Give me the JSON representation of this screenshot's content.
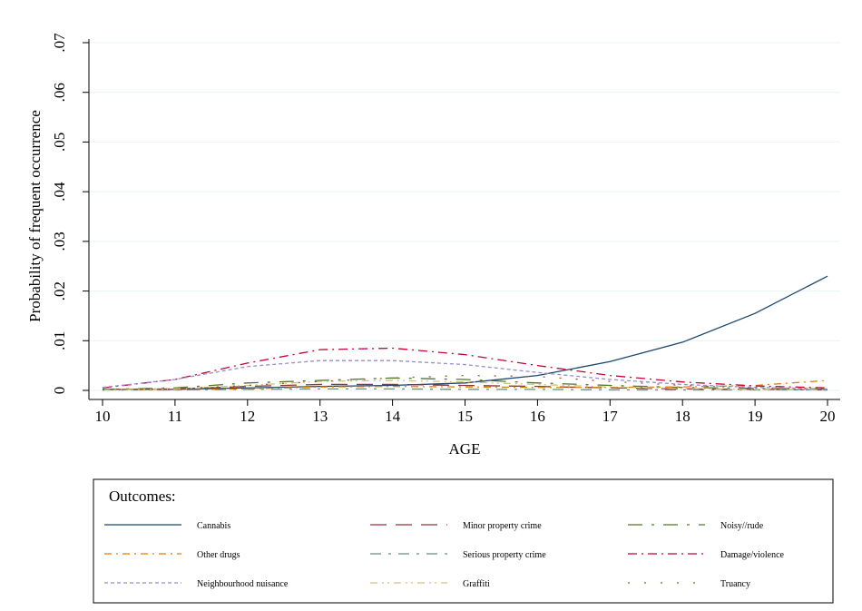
{
  "chart_data": {
    "type": "line",
    "y_label": "Probability of frequent occurrence",
    "x_label": "AGE",
    "legend_title": "Outcomes:",
    "x": [
      10,
      11,
      12,
      13,
      14,
      15,
      16,
      17,
      18,
      19,
      20
    ],
    "xlim": [
      10,
      20
    ],
    "xticks": [
      10,
      11,
      12,
      13,
      14,
      15,
      16,
      17,
      18,
      19,
      20
    ],
    "ylim": [
      0,
      0.07
    ],
    "yticks": [
      0,
      {
        "value": 0.01,
        "label": ".01"
      },
      {
        "value": 0.02,
        "label": ".02"
      },
      {
        "value": 0.03,
        "label": ".03"
      },
      {
        "value": 0.04,
        "label": ".04"
      },
      {
        "value": 0.05,
        "label": ".05"
      },
      {
        "value": 0.06,
        "label": ".06"
      },
      {
        "value": 0.07,
        "label": ".07"
      }
    ],
    "grid": true,
    "legend_position": "bottom",
    "series": [
      {
        "name": "Cannabis",
        "color": "#1a476f",
        "values": [
          0.0002,
          0.0002,
          0.0005,
          0.0008,
          0.001,
          0.0015,
          0.003,
          0.0058,
          0.0097,
          0.0155,
          0.023
        ]
      },
      {
        "name": "Minor property crime",
        "color": "#90353b",
        "values": [
          0.0002,
          0.0003,
          0.0008,
          0.0012,
          0.0012,
          0.001,
          0.0008,
          0.0005,
          0.0003,
          0.0002,
          0.0001
        ]
      },
      {
        "name": "Noisy//rude",
        "color": "#55752f",
        "values": [
          0.0002,
          0.0005,
          0.0015,
          0.002,
          0.0025,
          0.0022,
          0.0015,
          0.001,
          0.0006,
          0.0004,
          0.0003
        ]
      },
      {
        "name": "Other drugs",
        "color": "#e37e00",
        "values": [
          0.0001,
          0.0001,
          0.0003,
          0.0007,
          0.0008,
          0.0007,
          0.0006,
          0.0006,
          0.0007,
          0.001,
          0.002
        ]
      },
      {
        "name": "Serious property crime",
        "color": "#6e8e84",
        "values": [
          0.0001,
          0.0001,
          0.0002,
          0.0003,
          0.0003,
          0.0002,
          0.0002,
          0.0001,
          0.0001,
          0.0001,
          0.0001
        ]
      },
      {
        "name": "Damage/violence",
        "color": "#c10534",
        "values": [
          0.0005,
          0.0022,
          0.0055,
          0.0082,
          0.0085,
          0.0072,
          0.005,
          0.003,
          0.0017,
          0.0009,
          0.0005
        ]
      },
      {
        "name": "Neighbourhood nuisance",
        "color": "#938dd2",
        "values": [
          0.0006,
          0.0022,
          0.0048,
          0.006,
          0.006,
          0.0052,
          0.0036,
          0.0022,
          0.0012,
          0.0006,
          0.0003
        ]
      },
      {
        "name": "Graffiti",
        "color": "#cac27e",
        "values": [
          0.0001,
          0.0003,
          0.001,
          0.0018,
          0.002,
          0.0017,
          0.0012,
          0.0007,
          0.0004,
          0.0002,
          0.0001
        ]
      },
      {
        "name": "Truancy",
        "color": "#a0522d",
        "values": [
          0.0001,
          0.0003,
          0.001,
          0.0018,
          0.0025,
          0.003,
          0.0028,
          0.0018,
          0.001,
          0.0005,
          0.0003
        ]
      }
    ]
  }
}
